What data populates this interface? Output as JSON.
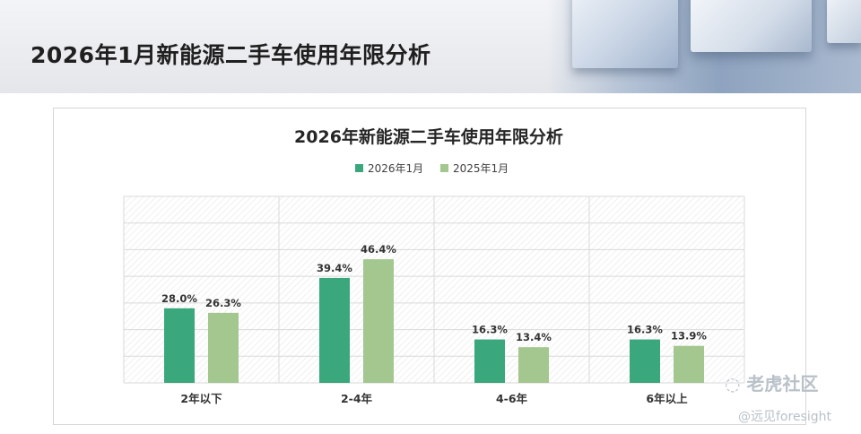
{
  "page": {
    "title": "2026年1月新能源二手车使用年限分析",
    "watermark_brand": "老虎社区",
    "watermark_handle": "@远见foresight"
  },
  "colors": {
    "series_2026": "#3aa87c",
    "series_2025": "#a3c78e",
    "grid": "#d9d9d9"
  },
  "chart_data": {
    "type": "bar",
    "title": "2026年新能源二手车使用年限分析",
    "xlabel": "",
    "ylabel": "",
    "categories": [
      "2年以下",
      "2-4年",
      "4-6年",
      "6年以上"
    ],
    "series": [
      {
        "name": "2026年1月",
        "values": [
          28.0,
          39.4,
          16.3,
          16.3
        ],
        "labels": [
          "28.0%",
          "39.4%",
          "16.3%",
          "16.3%"
        ]
      },
      {
        "name": "2025年1月",
        "values": [
          26.3,
          46.4,
          13.4,
          13.9
        ],
        "labels": [
          "26.3%",
          "46.4%",
          "13.4%",
          "13.9%"
        ]
      }
    ],
    "ylim": [
      0,
      70
    ],
    "grid": true,
    "legend": "top-center",
    "value_unit": "%"
  }
}
